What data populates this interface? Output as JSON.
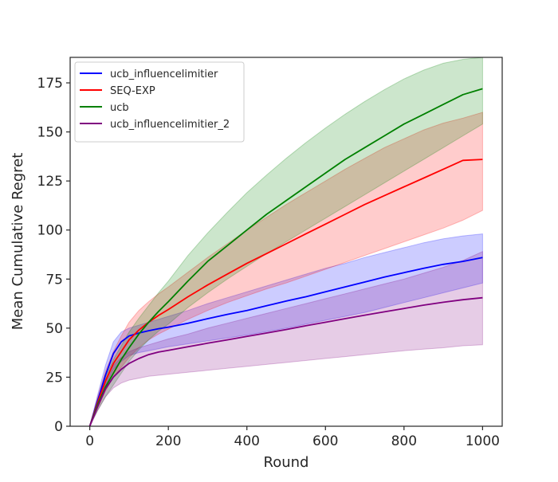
{
  "chart_data": {
    "type": "line",
    "xlabel": "Round",
    "ylabel": "Mean Cumulative Regret",
    "xlim": [
      -50,
      1050
    ],
    "ylim": [
      0,
      188
    ],
    "xticks": [
      0,
      200,
      400,
      600,
      800,
      1000
    ],
    "yticks": [
      0,
      25,
      50,
      75,
      100,
      125,
      150,
      175
    ],
    "grid": false,
    "legend_position": "top-left",
    "x": [
      0,
      20,
      40,
      60,
      80,
      100,
      125,
      150,
      175,
      200,
      250,
      300,
      350,
      400,
      450,
      500,
      550,
      600,
      650,
      700,
      750,
      800,
      850,
      900,
      950,
      1000
    ],
    "series": [
      {
        "name": "ucb_influencelimitier",
        "color": "#0000ff",
        "band_opacity": 0.2,
        "mean": [
          0,
          13,
          26,
          37,
          43,
          46,
          47.5,
          48.7,
          49.7,
          50.5,
          52.5,
          54.8,
          57,
          59,
          61.4,
          63.8,
          66,
          68.5,
          71,
          73.5,
          76,
          78.3,
          80.5,
          82.5,
          84,
          86
        ],
        "lower": [
          0,
          10,
          21,
          29,
          33,
          36,
          37.5,
          38.5,
          39.5,
          40.5,
          42,
          43.5,
          45,
          46.5,
          48.2,
          50,
          52,
          54,
          56,
          58,
          60.5,
          63,
          65.5,
          68,
          70.5,
          73
        ],
        "upper": [
          0,
          16,
          31,
          43,
          48,
          50,
          51.5,
          53,
          54.5,
          56,
          59,
          62.5,
          65.5,
          68.5,
          71.5,
          74.5,
          77.5,
          80.5,
          83,
          86,
          88.5,
          91,
          93.5,
          95.5,
          97,
          98
        ]
      },
      {
        "name": "SEQ-EXP",
        "color": "#ff0000",
        "band_opacity": 0.2,
        "mean": [
          0,
          12,
          23,
          32,
          38,
          44,
          49,
          53,
          56.5,
          59.5,
          66,
          72,
          77.5,
          83,
          88,
          93,
          98,
          103,
          108,
          113,
          117.5,
          122,
          126.5,
          131,
          135.5,
          136
        ],
        "lower": [
          0,
          9,
          18,
          25,
          30,
          35,
          40,
          44,
          47,
          49.5,
          54.5,
          59,
          63,
          66.5,
          70,
          73,
          76.5,
          80,
          83.5,
          87,
          90.5,
          94,
          97.5,
          101,
          105,
          110
        ],
        "upper": [
          0,
          15,
          28,
          38,
          46,
          53,
          59,
          63.5,
          67.5,
          71,
          78.5,
          86,
          93,
          100,
          106.5,
          113,
          119,
          125,
          131,
          136.5,
          142,
          146.5,
          151,
          154.5,
          157,
          160
        ]
      },
      {
        "name": "ucb",
        "color": "#008000",
        "band_opacity": 0.2,
        "mean": [
          0,
          11,
          20,
          27,
          34,
          40,
          47,
          53,
          58.5,
          63.5,
          74,
          84,
          92,
          100,
          108,
          115,
          122,
          129,
          136,
          142,
          148,
          154,
          159,
          164,
          169,
          172
        ],
        "lower": [
          0,
          8,
          15,
          21,
          27,
          33,
          39,
          44,
          48.5,
          52,
          60.5,
          68,
          75,
          81.5,
          88,
          94,
          100,
          106,
          112,
          118,
          124,
          130,
          136,
          142,
          148,
          154
        ],
        "upper": [
          0,
          14,
          25,
          34,
          41,
          48,
          55,
          61.5,
          68,
          74,
          87,
          98.5,
          109,
          119,
          128,
          136.5,
          144.5,
          152,
          159,
          165.5,
          171.5,
          177,
          181.5,
          185,
          187,
          188
        ]
      },
      {
        "name": "ucb_influencelimitier_2",
        "color": "#800080",
        "band_opacity": 0.2,
        "mean": [
          0,
          10,
          19,
          25,
          29,
          32,
          34.5,
          36.5,
          37.8,
          38.7,
          40.5,
          42.3,
          44,
          45.8,
          47.5,
          49.3,
          51.2,
          53,
          54.8,
          56.6,
          58.3,
          60,
          61.7,
          63.2,
          64.5,
          65.5
        ],
        "lower": [
          0,
          8,
          15,
          19.5,
          22,
          23.5,
          24.5,
          25.5,
          26,
          26.5,
          27.5,
          28.5,
          29.5,
          30.5,
          31.5,
          32.5,
          33.5,
          34.5,
          35.5,
          36.5,
          37.5,
          38.5,
          39.3,
          40,
          41,
          41.5
        ],
        "upper": [
          0,
          13,
          24,
          31,
          35,
          38,
          40,
          41.5,
          43,
          44.5,
          47,
          50,
          52.5,
          55,
          57.5,
          60,
          62.5,
          65,
          67.5,
          70,
          72.5,
          75,
          78,
          81,
          84.5,
          89
        ]
      }
    ]
  }
}
